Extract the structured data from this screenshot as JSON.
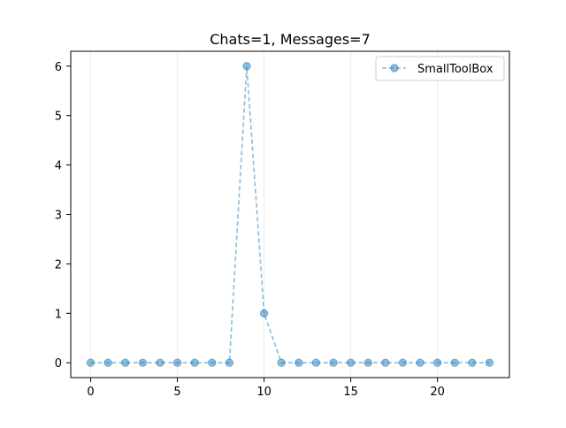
{
  "chart_data": {
    "type": "line",
    "title": "Chats=1, Messages=7",
    "xlabel": "",
    "ylabel": "",
    "x": [
      0,
      1,
      2,
      3,
      4,
      5,
      6,
      7,
      8,
      9,
      10,
      11,
      12,
      13,
      14,
      15,
      16,
      17,
      18,
      19,
      20,
      21,
      22,
      23
    ],
    "series": [
      {
        "name": "SmallToolBox",
        "values": [
          0,
          0,
          0,
          0,
          0,
          0,
          0,
          0,
          0,
          6,
          1,
          0,
          0,
          0,
          0,
          0,
          0,
          0,
          0,
          0,
          0,
          0,
          0,
          0
        ],
        "color": "#1f77b4",
        "line_style": "dashed",
        "marker": "circle",
        "opacity": 0.5
      }
    ],
    "xlim": [
      -1.15,
      24.15
    ],
    "ylim": [
      -0.3,
      6.3
    ],
    "xticks": [
      "0",
      "5",
      "10",
      "15",
      "20"
    ],
    "yticks": [
      "0",
      "1",
      "2",
      "3",
      "4",
      "5",
      "6"
    ],
    "grid": "vertical",
    "legend_position": "top-right"
  }
}
